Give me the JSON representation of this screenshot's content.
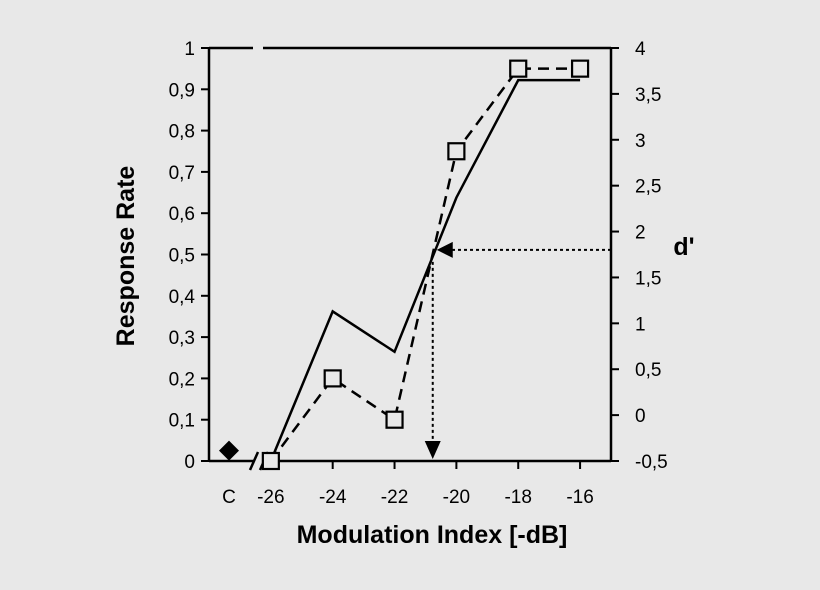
{
  "chart_data": {
    "type": "line",
    "xlabel": "Modulation Index [-dB]",
    "ylabel": "Response Rate",
    "y2label": "d'",
    "x_ticks": [
      "C",
      "-26",
      "-24",
      "-22",
      "-20",
      "-18",
      "-16"
    ],
    "x_numeric_range": [
      -28,
      -15
    ],
    "ylim": [
      0,
      1
    ],
    "y_ticks": [
      "0",
      "0,1",
      "0,2",
      "0,3",
      "0,4",
      "0,5",
      "0,6",
      "0,7",
      "0,8",
      "0,9",
      "1"
    ],
    "y2lim": [
      -0.5,
      4
    ],
    "y2_ticks": [
      "-0,5",
      "0",
      "0,5",
      "1",
      "1,5",
      "2",
      "2,5",
      "3",
      "3,5",
      "4"
    ],
    "grid": false,
    "series": [
      {
        "style": "solid",
        "axis": "right",
        "x": [
          -26,
          -24,
          -22,
          -20,
          -18,
          -16
        ],
        "values": [
          -0.5,
          1.13,
          0.69,
          2.37,
          3.65,
          3.65
        ]
      },
      {
        "style": "dashed",
        "marker": "square",
        "axis": "left",
        "x": [
          -26,
          -24,
          -22,
          -20,
          -18,
          -16
        ],
        "values": [
          0,
          0.2,
          0.1,
          0.75,
          0.95,
          0.95
        ]
      }
    ],
    "control_point": {
      "x": "C",
      "value": 0.025,
      "marker": "diamond"
    },
    "threshold": {
      "d_prime": 1.8,
      "x": -20.7
    }
  }
}
